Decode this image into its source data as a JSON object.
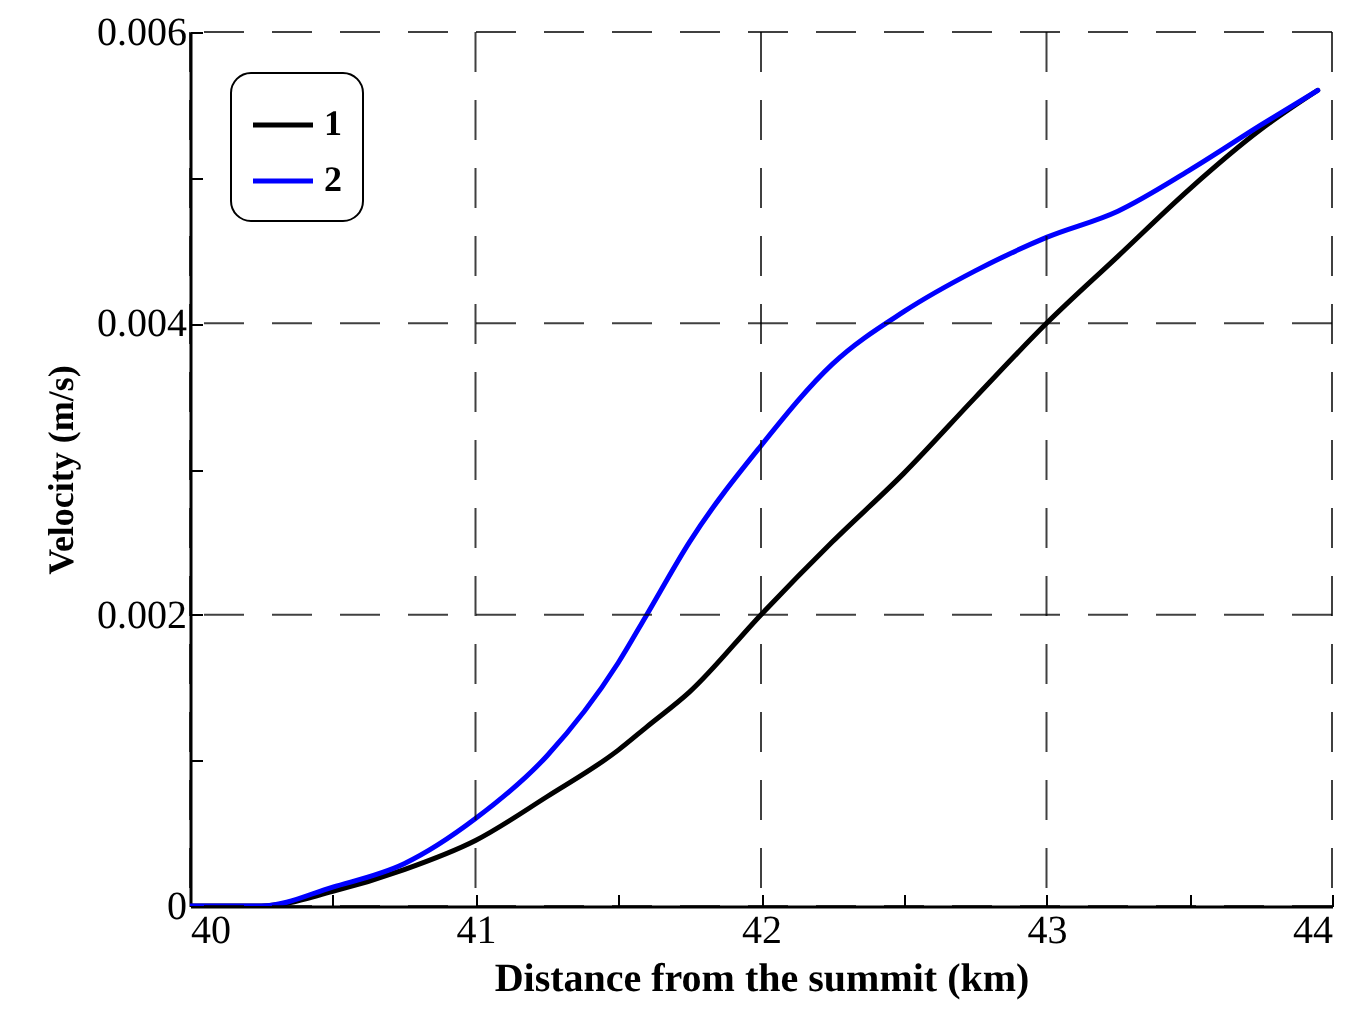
{
  "chart_data": {
    "type": "line",
    "xlabel": "Distance from the summit (km)",
    "ylabel": "Velocity (m/s)",
    "xlim": [
      40,
      44
    ],
    "ylim": [
      0,
      0.006
    ],
    "xticks": [
      40,
      {
        "value": 40.5,
        "label": null
      },
      41,
      {
        "value": 41.5,
        "label": null
      },
      42,
      {
        "value": 42.5,
        "label": null
      },
      43,
      {
        "value": 43.5,
        "label": null
      },
      44
    ],
    "yticks": [
      0,
      {
        "value": 0.001,
        "label": null
      },
      0.002,
      {
        "value": 0.003,
        "label": null
      },
      0.004,
      {
        "value": 0.005,
        "label": null
      },
      0.006
    ],
    "grid": true,
    "legend": "top left",
    "line_style": "solid",
    "x": [
      40,
      40.25,
      40.5,
      40.75,
      41,
      41.25,
      41.5,
      41.6,
      41.75,
      42,
      42.25,
      42.5,
      42.75,
      43,
      43.25,
      43.5,
      43.75,
      43.95
    ],
    "series": [
      {
        "name": "1",
        "color": "#000000",
        "values": [
          0,
          0,
          0.0001,
          0.00025,
          0.00045,
          0.00075,
          0.00107,
          0.00123,
          0.00147,
          0.002,
          0.0025,
          0.00297,
          0.00349,
          0.004,
          0.00446,
          0.00492,
          0.00533,
          0.0056
        ]
      },
      {
        "name": "2",
        "color": "#0000ff",
        "values": [
          0,
          0,
          0.00013,
          0.00029,
          0.0006,
          0.00103,
          0.00167,
          0.002,
          0.0025,
          0.00316,
          0.00372,
          0.00408,
          0.00436,
          0.00459,
          0.00477,
          0.00505,
          0.00536,
          0.0056
        ]
      }
    ]
  }
}
